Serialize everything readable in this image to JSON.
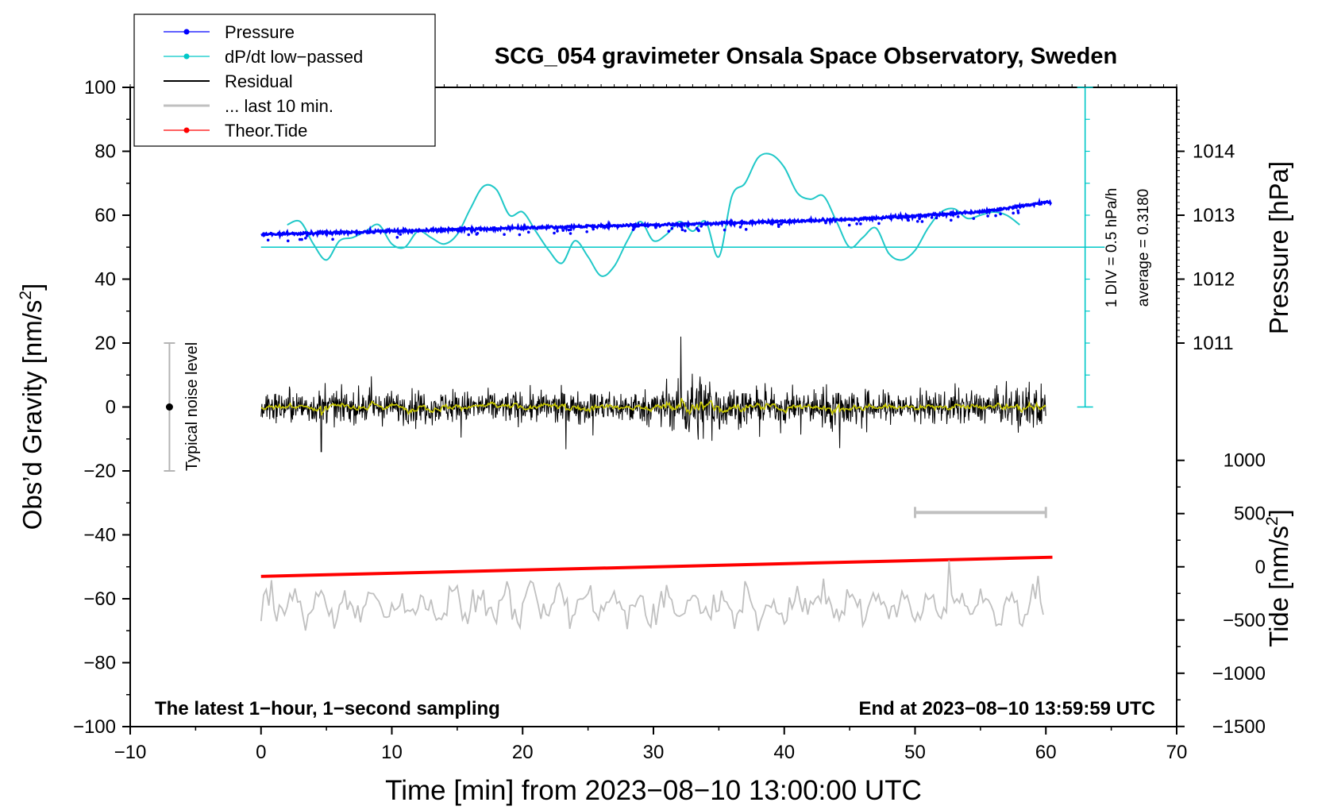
{
  "chart_data": {
    "type": "line",
    "title": "SCG_054 gravimeter Onsala Space Observatory, Sweden",
    "xlabel": "Time [min] from 2023−08−10 13:00:00 UTC",
    "ylabel_main": "Obs’d Gravity [nm/s",
    "ylabel_main_sup": "2",
    "ylabel_main_end": "]",
    "ylabel_pressure": "Pressure [hPa]",
    "ylabel_tide": "Tide [nm/s",
    "ylabel_tide_sup": "2",
    "ylabel_tide_end": "]",
    "xlim": [
      -10,
      70
    ],
    "ylim": [
      -100,
      100
    ],
    "x_ticks": [
      "−10",
      "0",
      "10",
      "20",
      "30",
      "40",
      "50",
      "60",
      "70"
    ],
    "x_tick_values": [
      -10,
      0,
      10,
      20,
      30,
      40,
      50,
      60,
      70
    ],
    "y_ticks": [
      "100",
      "80",
      "60",
      "40",
      "20",
      "0",
      "−20",
      "−40",
      "−60",
      "−80",
      "−100"
    ],
    "y_tick_values": [
      100,
      80,
      60,
      40,
      20,
      0,
      -20,
      -40,
      -60,
      -80,
      -100
    ],
    "pressure_ticks": [
      "1014",
      "1013",
      "1012",
      "1011"
    ],
    "pressure_tick_values": [
      1014,
      1013,
      1012,
      1011
    ],
    "pressure_ref": {
      "y_at_1013": 60,
      "nm_per_hpa": 20
    },
    "tide_ticks": [
      "1000",
      "500",
      "0",
      "−500",
      "−1000",
      "−1500"
    ],
    "tide_tick_values": [
      1000,
      500,
      0,
      -500,
      -1000,
      -1500
    ],
    "tide_ref": {
      "y_at_0": -50,
      "nm_per_unit": 0.0333
    },
    "legend": [
      {
        "label": "Pressure",
        "color": "#0000ff",
        "marker": true
      },
      {
        "label": "dP/dt low−passed",
        "color": "#00c8c8",
        "marker": true
      },
      {
        "label": "Residual",
        "color": "#000000",
        "marker": false
      },
      {
        "label": "... last 10 min.",
        "color": "#c0c0c0",
        "marker": false
      },
      {
        "label": "Theor.Tide",
        "color": "#ff0000",
        "marker": true
      }
    ],
    "annotations": {
      "bottom_left": "The latest 1−hour, 1−second sampling",
      "bottom_right": "End at 2023−08−10 13:59:59 UTC",
      "noise": "Typical noise level",
      "div": "1 DIV = 0.5 hPa/h",
      "average": "average = 0.3180"
    },
    "series": [
      {
        "name": "Pressure",
        "unit": "hPa",
        "x": [
          0,
          10,
          20,
          30,
          40,
          47,
          55,
          60
        ],
        "values": [
          1012.7,
          1012.75,
          1012.8,
          1012.85,
          1012.9,
          1012.95,
          1013.05,
          1013.2
        ]
      },
      {
        "name": "dP/dt low−passed",
        "baseline_y": 50,
        "x": [
          2,
          3,
          4,
          5,
          6,
          7,
          8,
          9,
          10,
          11,
          12,
          13,
          14,
          15,
          16,
          17,
          18,
          19,
          20,
          21,
          22,
          23,
          24,
          25,
          26,
          27,
          28,
          29,
          30,
          31,
          32,
          33,
          34,
          35,
          36,
          37,
          38,
          39,
          40,
          41,
          42,
          43,
          44,
          45,
          46,
          47,
          48,
          49,
          50,
          51,
          52,
          53,
          54,
          55,
          56,
          57,
          58
        ],
        "values": [
          57,
          58,
          51,
          46,
          52,
          53,
          55,
          57,
          51,
          50,
          55,
          53,
          51,
          54,
          62,
          69,
          68,
          60,
          61,
          55,
          49,
          45,
          52,
          47,
          41,
          44,
          52,
          58,
          52,
          54,
          58,
          55,
          58,
          47,
          66,
          70,
          78,
          79,
          75,
          67,
          65,
          66,
          58,
          50,
          53,
          56,
          48,
          46,
          49,
          56,
          61,
          62,
          59,
          60,
          61,
          60,
          57
        ]
      },
      {
        "name": "Residual",
        "x_start": 0,
        "x_end": 60,
        "mean": 0,
        "typical_range": [
          -10,
          12
        ],
        "peak": 22
      },
      {
        "name": "Residual smoothed",
        "color": "#c8c800",
        "x_start": 0,
        "x_end": 60,
        "mean": 0
      },
      {
        "name": "... last 10 min.",
        "x_start": 0,
        "x_end": 60,
        "mean_y": -62
      },
      {
        "name": "Theor.Tide",
        "unit": "nm/s^2",
        "x": [
          0,
          60.5
        ],
        "values": [
          -90,
          90
        ]
      }
    ],
    "noise_bar": {
      "x": -7,
      "center": 0,
      "range": [
        -20,
        20
      ]
    },
    "ten_min_bar": {
      "x": [
        50,
        60
      ],
      "y": -33
    }
  }
}
